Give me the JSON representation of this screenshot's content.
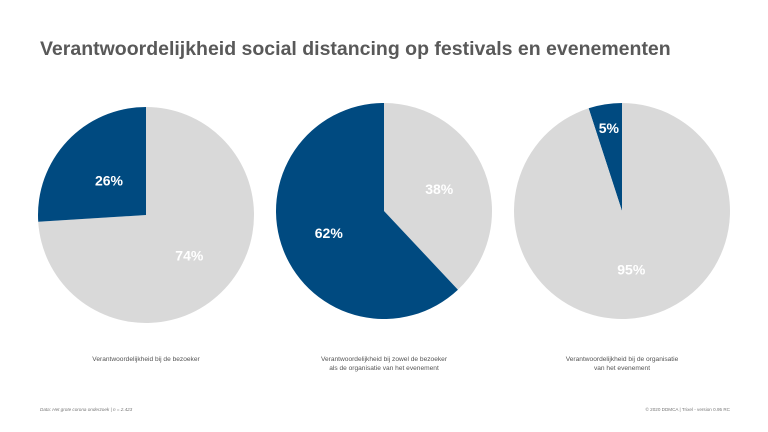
{
  "title": "Verantwoordelijkheid social distancing op festivals en evenementen",
  "colors": {
    "primary": "#004a80",
    "secondary": "#d9d9d9",
    "label": "#ffffff"
  },
  "chart_data": [
    {
      "type": "pie",
      "title": "",
      "slices": [
        {
          "label": "26%",
          "value": 26,
          "color": "#004a80"
        },
        {
          "label": "74%",
          "value": 74,
          "color": "#d9d9d9"
        }
      ],
      "caption": [
        "Verantwoordelijkheid bij de bezoeker"
      ]
    },
    {
      "type": "pie",
      "title": "",
      "slices": [
        {
          "label": "38%",
          "value": 38,
          "color": "#d9d9d9"
        },
        {
          "label": "62%",
          "value": 62,
          "color": "#004a80"
        }
      ],
      "caption": [
        "Verantwoordelijkheid bij zowel de bezoeker",
        "als de organisatie van het evenement"
      ]
    },
    {
      "type": "pie",
      "title": "",
      "slices": [
        {
          "label": "95%",
          "value": 95,
          "color": "#d9d9d9"
        },
        {
          "label": "5%",
          "value": 5,
          "color": "#004a80"
        }
      ],
      "caption": [
        "Verantwoordelijkheid bij de organisatie",
        "van het evenement"
      ]
    }
  ],
  "footer": {
    "source": "Data: Het grote corona onderzoek | n = 2.423",
    "copyright": "© 2020 DDMCA | Trixel - version 0.95 RC"
  }
}
